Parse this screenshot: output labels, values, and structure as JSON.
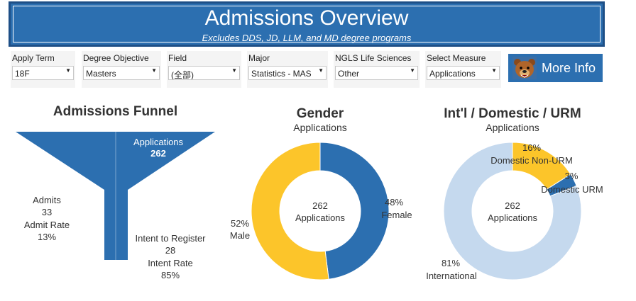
{
  "header": {
    "title": "Admissions Overview",
    "subtitle": "Excludes DDS, JD, LLM, and MD degree programs"
  },
  "filters": [
    {
      "label": "Apply Term",
      "value": "18F"
    },
    {
      "label": "Degree Objective",
      "value": "Masters"
    },
    {
      "label": "Field",
      "value": "(全部)"
    },
    {
      "label": "Major",
      "value": "Statistics - MAS"
    },
    {
      "label": "NGLS Life Sciences",
      "value": "Other"
    },
    {
      "label": "Select Measure",
      "value": "Applications"
    }
  ],
  "more_info": {
    "label": "More Info",
    "icon": "bear-mascot-icon"
  },
  "funnel": {
    "title": "Admissions Funnel",
    "applications": {
      "label": "Applications",
      "value": "262"
    },
    "admits": {
      "label": "Admits",
      "value": "33",
      "rate_label": "Admit Rate",
      "rate": "13%"
    },
    "intent": {
      "label": "Intent to Register",
      "value": "28",
      "rate_label": "Intent Rate",
      "rate": "85%"
    },
    "color": "#2c6fb0"
  },
  "gender": {
    "title": "Gender",
    "subtitle": "Applications",
    "center_value": "262",
    "center_label": "Applications",
    "slices": [
      {
        "pct": "48%",
        "name": "Female",
        "fraction": 0.48,
        "color": "#2c6fb0"
      },
      {
        "pct": "52%",
        "name": "Male",
        "fraction": 0.52,
        "color": "#fcc52a"
      }
    ]
  },
  "citizenship": {
    "title": "Int'l / Domestic / URM",
    "subtitle": "Applications",
    "center_value": "262",
    "center_label": "Applications",
    "slices": [
      {
        "pct": "16%",
        "name": "Domestic Non-URM",
        "fraction": 0.16,
        "color": "#fcc52a"
      },
      {
        "pct": "3%",
        "name": "Domestic URM",
        "fraction": 0.03,
        "color": "#2c6fb0"
      },
      {
        "pct": "81%",
        "name": "International",
        "fraction": 0.81,
        "color": "#c5d9ee"
      }
    ]
  }
}
